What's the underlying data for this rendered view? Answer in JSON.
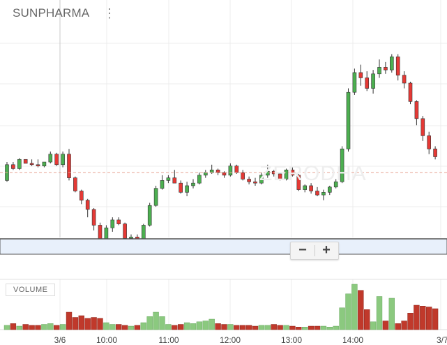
{
  "header": {
    "symbol": "SUNPHARMA",
    "menu_icon": "vertical-dots-icon"
  },
  "watermark": "ZERODHA",
  "volume_label": "VOLUME",
  "zoom": {
    "minus_label": "−",
    "plus_label": "+"
  },
  "x_axis_labels": [
    "3/6",
    "10:00",
    "11:00",
    "12:00",
    "13:00",
    "14:00",
    "3/7"
  ],
  "colors": {
    "up": "#4caf50",
    "down": "#e53935",
    "vol_up": "#8bc97f",
    "vol_down": "#c0392b",
    "ref_line": "#e8a090",
    "navigator": "#e8f0fb"
  },
  "chart_data": {
    "type": "candlestick",
    "series": [
      {
        "name": "price",
        "candles": [
          [
            100,
            114,
            99,
            112
          ],
          [
            112,
            114,
            108,
            109
          ],
          [
            109,
            117,
            108,
            116
          ],
          [
            116,
            116,
            113,
            113
          ],
          [
            113,
            116,
            111,
            112
          ],
          [
            112,
            116,
            110,
            111
          ],
          [
            111,
            114,
            110,
            114
          ],
          [
            114,
            122,
            113,
            120
          ],
          [
            120,
            121,
            111,
            112
          ],
          [
            112,
            122,
            110,
            120
          ],
          [
            120,
            124,
            100,
            102
          ],
          [
            102,
            103,
            91,
            92
          ],
          [
            92,
            93,
            82,
            85
          ],
          [
            85,
            86,
            72,
            78
          ],
          [
            78,
            79,
            62,
            66
          ],
          [
            66,
            68,
            51,
            55
          ],
          [
            55,
            66,
            53,
            64
          ],
          [
            64,
            72,
            61,
            70
          ],
          [
            70,
            72,
            66,
            67
          ],
          [
            67,
            68,
            54,
            56
          ],
          [
            56,
            59,
            54,
            57
          ],
          [
            57,
            59,
            51,
            52
          ],
          [
            52,
            67,
            50,
            66
          ],
          [
            66,
            83,
            65,
            81
          ],
          [
            81,
            96,
            80,
            94
          ],
          [
            94,
            104,
            93,
            100
          ],
          [
            100,
            104,
            98,
            102
          ],
          [
            102,
            108,
            99,
            98
          ],
          [
            98,
            100,
            90,
            91
          ],
          [
            91,
            99,
            88,
            96
          ],
          [
            96,
            101,
            94,
            98
          ],
          [
            98,
            106,
            97,
            104
          ],
          [
            104,
            108,
            102,
            106
          ],
          [
            106,
            112,
            105,
            108
          ],
          [
            108,
            109,
            104,
            106
          ],
          [
            106,
            107,
            102,
            104
          ],
          [
            104,
            113,
            103,
            111
          ],
          [
            111,
            112,
            105,
            106
          ],
          [
            106,
            108,
            100,
            101
          ],
          [
            101,
            103,
            97,
            99
          ],
          [
            99,
            102,
            96,
            98
          ],
          [
            98,
            106,
            97,
            104
          ],
          [
            104,
            112,
            102,
            107
          ],
          [
            107,
            108,
            103,
            105
          ],
          [
            105,
            106,
            100,
            101
          ],
          [
            101,
            109,
            100,
            108
          ],
          [
            108,
            110,
            103,
            104
          ],
          [
            104,
            105,
            92,
            93
          ],
          [
            93,
            97,
            91,
            96
          ],
          [
            96,
            98,
            90,
            92
          ],
          [
            92,
            95,
            88,
            89
          ],
          [
            89,
            93,
            85,
            91
          ],
          [
            91,
            96,
            89,
            95
          ],
          [
            95,
            101,
            94,
            99
          ],
          [
            99,
            126,
            98,
            124
          ],
          [
            124,
            170,
            122,
            167
          ],
          [
            167,
            185,
            165,
            182
          ],
          [
            182,
            188,
            172,
            178
          ],
          [
            178,
            183,
            168,
            170
          ],
          [
            170,
            184,
            166,
            181
          ],
          [
            181,
            192,
            178,
            186
          ],
          [
            186,
            190,
            181,
            184
          ],
          [
            184,
            196,
            182,
            194
          ],
          [
            194,
            196,
            176,
            180
          ],
          [
            180,
            183,
            170,
            174
          ],
          [
            174,
            175,
            158,
            160
          ],
          [
            160,
            161,
            142,
            147
          ],
          [
            147,
            149,
            130,
            134
          ],
          [
            134,
            137,
            120,
            124
          ],
          [
            124,
            126,
            116,
            118
          ]
        ]
      },
      {
        "name": "volume",
        "values": [
          5,
          7,
          4,
          6,
          5,
          5,
          6,
          7,
          5,
          6,
          20,
          14,
          16,
          13,
          14,
          13,
          8,
          6,
          6,
          5,
          4,
          5,
          8,
          15,
          20,
          15,
          6,
          5,
          6,
          8,
          7,
          9,
          10,
          12,
          7,
          6,
          6,
          5,
          5,
          5,
          4,
          5,
          5,
          6,
          5,
          5,
          4,
          3,
          3,
          4,
          4,
          4,
          3,
          4,
          25,
          41,
          52,
          45,
          23,
          9,
          38,
          10,
          36,
          7,
          10,
          19,
          28,
          27,
          26,
          24
        ]
      }
    ],
    "y_ref_line": 106
  }
}
